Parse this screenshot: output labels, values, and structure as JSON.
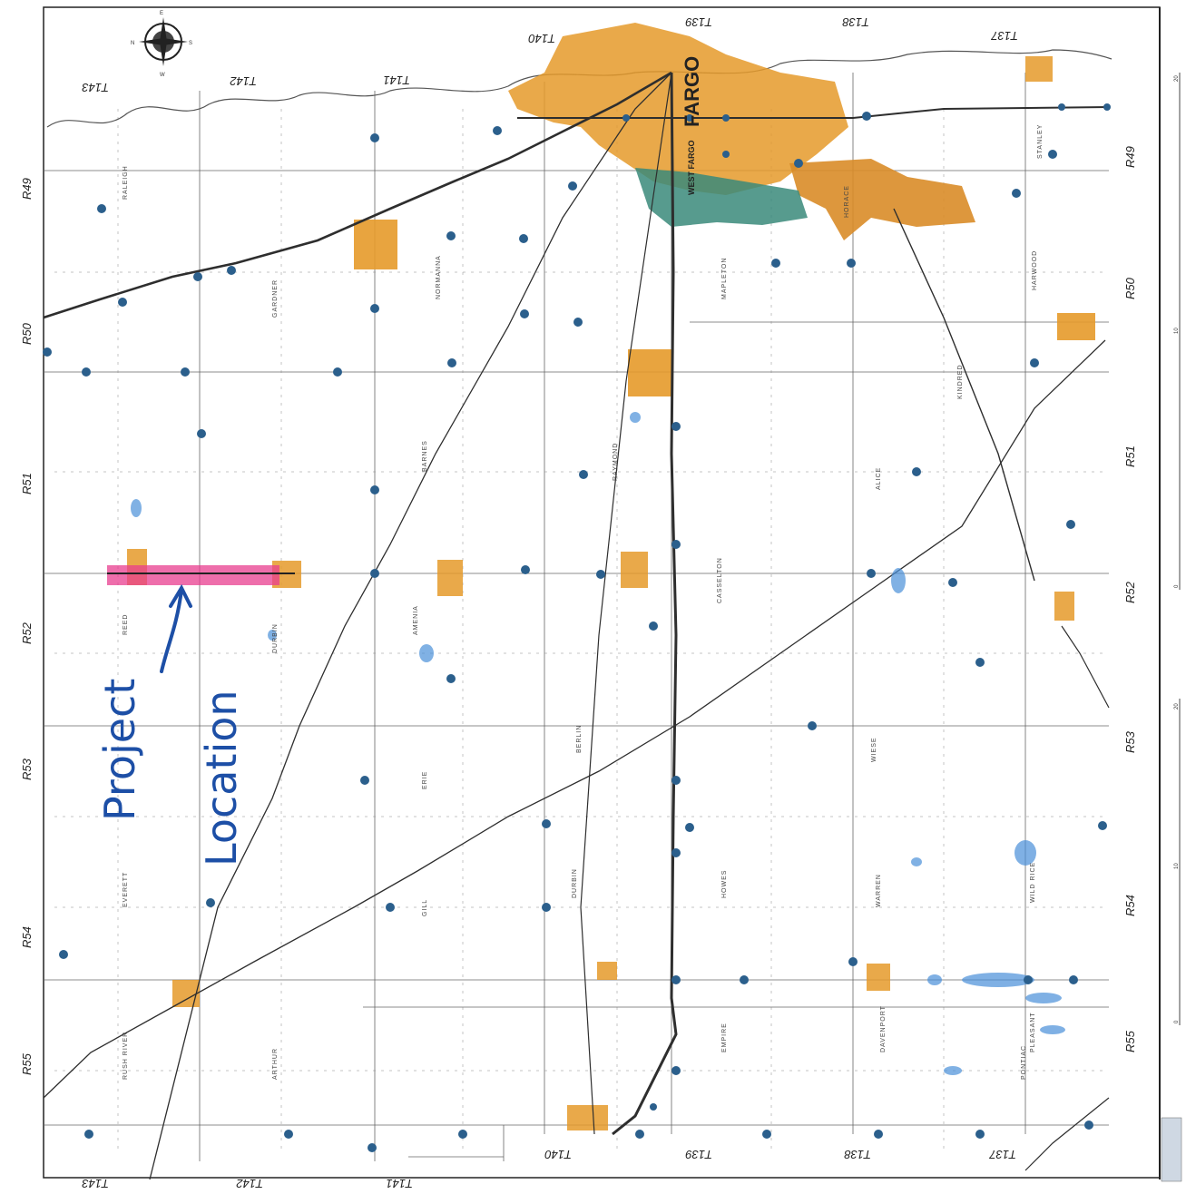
{
  "map": {
    "city": "FARGO",
    "city2": "WEST FARGO",
    "annotation": {
      "word1": "Project",
      "word2": "Location"
    },
    "ranges": [
      "R49",
      "R50",
      "R51",
      "R52",
      "R53",
      "R54",
      "R55"
    ],
    "ranges_right": [
      "R49",
      "R50",
      "R51",
      "R52",
      "R53",
      "R54",
      "R55"
    ],
    "townships_top": [
      "T143",
      "T142",
      "T141",
      "T140",
      "T139",
      "T138",
      "T137"
    ],
    "townships_bottom": [
      "T143",
      "T142",
      "T141",
      "T140",
      "T139",
      "T138",
      "T137"
    ],
    "township_names": [
      "RALEIGH",
      "NORMANNA",
      "REED",
      "BARNES",
      "HARWOOD",
      "STANLEY",
      "PLEASANT",
      "HOWES",
      "WARREN",
      "MAPLETON",
      "CASSELTON",
      "DURBIN",
      "RAYMOND",
      "GARDNER",
      "AMENIA",
      "DAVENPORT",
      "WILD RICE",
      "PONTIAC",
      "ALICE",
      "KINDRED",
      "HORACE",
      "ARTHUR",
      "EVERETT",
      "RUSH RIVER",
      "ERIE",
      "GILL",
      "WIESE",
      "DURBIN",
      "EMPIRE",
      "BERLIN"
    ],
    "scale_ticks_upper": [
      "20",
      "10",
      "0"
    ],
    "scale_ticks_lower": [
      "20",
      "10",
      "0"
    ],
    "colors": {
      "urban": "#e59a2a",
      "west_fargo": "#3a8a7a",
      "project": "#e83d8f",
      "roads": "#2e2e2e",
      "dots": "#2b5f8c",
      "water": "#4a90d9",
      "annotation": "#1d4fa6"
    },
    "icons": [
      "compass-rose-icon"
    ]
  }
}
